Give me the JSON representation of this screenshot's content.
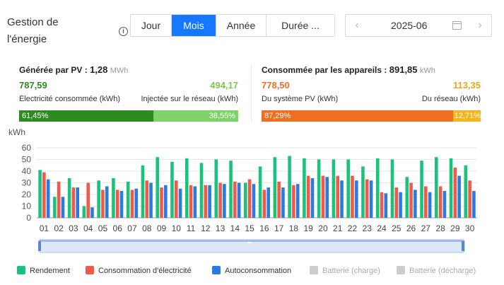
{
  "header": {
    "title": "Gestion de l'énergie",
    "info_icon": "info-icon",
    "period_tabs": [
      {
        "label": "Jour",
        "active": false
      },
      {
        "label": "Mois",
        "active": true
      },
      {
        "label": "Année",
        "active": false
      },
      {
        "label": "Durée ...",
        "active": false
      }
    ],
    "date": {
      "value": "2025-06",
      "prev_icon": "chevron-left-icon",
      "next_icon": "chevron-right-icon",
      "calendar_icon": "calendar-icon"
    }
  },
  "generated": {
    "title": "Générée par PV :",
    "total": "1,28",
    "unit": "MWh",
    "consumed_value": "787,59",
    "consumed_label": "Électricité consommée (kWh)",
    "injected_value": "494,17",
    "injected_label": "Injectée sur le réseau (kWh)",
    "consumed_pct": "61,45%",
    "injected_pct": "38,55%",
    "consumed_ratio": 61.45,
    "colors": {
      "consumed": "#2e8b22",
      "injected": "#7fd16a"
    }
  },
  "consumed": {
    "title": "Consommée par les appareils :",
    "total": "891,85",
    "unit": "kWh",
    "pv_value": "778,50",
    "pv_label": "Du système PV (kWh)",
    "grid_value": "113,35",
    "grid_label": "Du réseau (kWh)",
    "pv_pct": "87,29%",
    "grid_pct": "12,71%",
    "pv_ratio": 87.29,
    "colors": {
      "pv": "#f06e22",
      "grid": "#f2b51c"
    }
  },
  "chart": {
    "unit": "kWh",
    "scrollbar_handle": "drag-handle-icon"
  },
  "chart_data": {
    "type": "bar",
    "categories": [
      "01",
      "02",
      "03",
      "04",
      "05",
      "06",
      "07",
      "08",
      "09",
      "10",
      "11",
      "12",
      "13",
      "14",
      "15",
      "16",
      "17",
      "18",
      "19",
      "20",
      "21",
      "22",
      "23",
      "24",
      "25",
      "26",
      "27",
      "28",
      "29",
      "30"
    ],
    "ylim": [
      0,
      60
    ],
    "yticks": [
      0,
      10,
      20,
      30,
      40,
      50,
      60
    ],
    "series": [
      {
        "name": "Rendement",
        "color": "#19c37d",
        "values": [
          41,
          18,
          34,
          10,
          32,
          34,
          31,
          45,
          52,
          48,
          51,
          47,
          50,
          49,
          30,
          44,
          52,
          53,
          51,
          50,
          50,
          50,
          44,
          51,
          50,
          35,
          49,
          52,
          51,
          45
        ]
      },
      {
        "name": "Consommation d'électricité",
        "color": "#f05a4a",
        "values": [
          39,
          31,
          26,
          30,
          24,
          24,
          24,
          32,
          26,
          32,
          28,
          28,
          30,
          31,
          33,
          24,
          31,
          28,
          36,
          36,
          36,
          36,
          33,
          22,
          26,
          30,
          27,
          27,
          43,
          32
        ]
      },
      {
        "name": "Autoconsommation",
        "color": "#2a7ae2",
        "values": [
          33,
          18,
          26,
          9,
          27,
          23,
          25,
          30,
          28,
          25,
          27,
          28,
          29,
          30,
          29,
          26,
          26,
          29,
          34,
          35,
          32,
          32,
          32,
          21,
          22,
          24,
          22,
          23,
          36,
          23
        ]
      }
    ],
    "legend": [
      {
        "name": "Rendement",
        "color": "#19c37d",
        "enabled": true
      },
      {
        "name": "Consommation d'électricité",
        "color": "#f05a4a",
        "enabled": true
      },
      {
        "name": "Autoconsommation",
        "color": "#2a7ae2",
        "enabled": true
      },
      {
        "name": "Batterie (charge)",
        "color": "#cccccc",
        "enabled": false
      },
      {
        "name": "Batterie (décharge)",
        "color": "#cccccc",
        "enabled": false
      }
    ],
    "legend_position": "bottom",
    "grid": true
  }
}
